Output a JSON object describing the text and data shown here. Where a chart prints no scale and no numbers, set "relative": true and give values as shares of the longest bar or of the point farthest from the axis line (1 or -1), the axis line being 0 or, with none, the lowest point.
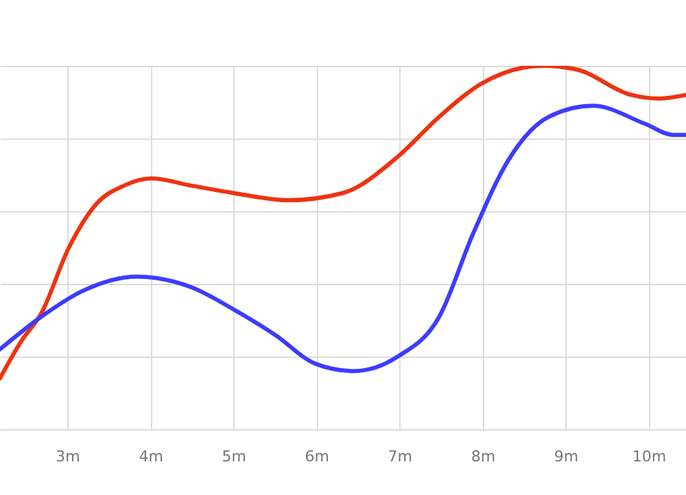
{
  "chart_data": {
    "type": "line",
    "relative": true,
    "grid": true,
    "xlim": [
      2.19,
      10.45
    ],
    "xticks": [
      {
        "value": 3,
        "label": "3m"
      },
      {
        "value": 4,
        "label": "4m"
      },
      {
        "value": 5,
        "label": "5m"
      },
      {
        "value": 6,
        "label": "6m"
      },
      {
        "value": 7,
        "label": "7m"
      },
      {
        "value": 8,
        "label": "8m"
      },
      {
        "value": 9,
        "label": "9m"
      },
      {
        "value": 10,
        "label": "10m"
      }
    ],
    "series": [
      {
        "color": "#ee3311",
        "x": [
          2.19,
          2.44,
          2.69,
          3.02,
          3.35,
          3.68,
          4.01,
          4.5,
          5.0,
          5.66,
          6.32,
          6.98,
          7.48,
          7.98,
          8.72,
          9.13,
          9.79,
          10.12,
          10.45
        ],
        "values": [
          0.14,
          0.24,
          0.32,
          0.5,
          0.62,
          0.67,
          0.69,
          0.67,
          0.65,
          0.63,
          0.65,
          0.75,
          0.86,
          0.95,
          1.0,
          0.99,
          0.92,
          0.91,
          0.92
        ]
      },
      {
        "color": "#3c3cff",
        "x": [
          2.19,
          2.69,
          3.18,
          3.84,
          4.5,
          5.0,
          5.5,
          5.99,
          6.45,
          6.98,
          7.48,
          7.89,
          8.31,
          8.8,
          9.33,
          9.96,
          10.29,
          10.45
        ],
        "values": [
          0.22,
          0.31,
          0.38,
          0.42,
          0.39,
          0.33,
          0.26,
          0.18,
          0.16,
          0.2,
          0.31,
          0.54,
          0.74,
          0.86,
          0.89,
          0.84,
          0.81,
          0.81
        ]
      }
    ]
  }
}
